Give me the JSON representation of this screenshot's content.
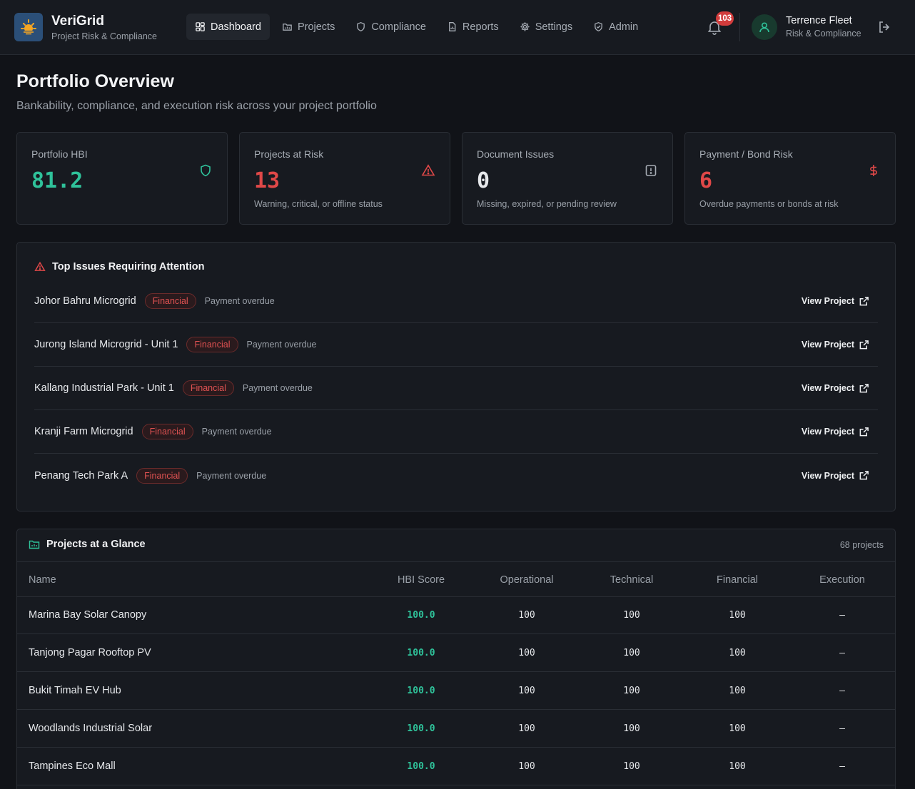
{
  "brand": {
    "name": "VeriGrid",
    "subtitle": "Project Risk & Compliance"
  },
  "nav": [
    {
      "label": "Dashboard",
      "icon": "dashboard-icon",
      "active": true
    },
    {
      "label": "Projects",
      "icon": "folder-icon"
    },
    {
      "label": "Compliance",
      "icon": "shield-icon"
    },
    {
      "label": "Reports",
      "icon": "report-icon"
    },
    {
      "label": "Settings",
      "icon": "gear-icon"
    },
    {
      "label": "Admin",
      "icon": "shield-check-icon"
    }
  ],
  "notifications": {
    "count": "103"
  },
  "user": {
    "name": "Terrence Fleet",
    "role": "Risk & Compliance"
  },
  "page": {
    "title": "Portfolio Overview",
    "subtitle": "Bankability, compliance, and execution risk across your project portfolio"
  },
  "cards": [
    {
      "label": "Portfolio HBI",
      "value": "81.2",
      "note": "",
      "icon": "shield-icon",
      "color": "#2fc29a"
    },
    {
      "label": "Projects at Risk",
      "value": "13",
      "note": "Warning, critical, or offline status",
      "icon": "warning-icon",
      "color": "#e04848"
    },
    {
      "label": "Document Issues",
      "value": "0",
      "note": "Missing, expired, or pending review",
      "icon": "alert-doc-icon",
      "color": "#e6e8eb"
    },
    {
      "label": "Payment / Bond Risk",
      "value": "6",
      "note": "Overdue payments or bonds at risk",
      "icon": "dollar-icon",
      "color": "#e04848"
    }
  ],
  "issues": {
    "title": "Top Issues Requiring Attention",
    "view_label": "View Project",
    "items": [
      {
        "project": "Johor Bahru Microgrid",
        "category": "Financial",
        "description": "Payment overdue"
      },
      {
        "project": "Jurong Island Microgrid - Unit 1",
        "category": "Financial",
        "description": "Payment overdue"
      },
      {
        "project": "Kallang Industrial Park - Unit 1",
        "category": "Financial",
        "description": "Payment overdue"
      },
      {
        "project": "Kranji Farm Microgrid",
        "category": "Financial",
        "description": "Payment overdue"
      },
      {
        "project": "Penang Tech Park A",
        "category": "Financial",
        "description": "Payment overdue"
      }
    ]
  },
  "glance": {
    "title": "Projects at a Glance",
    "count": "68 projects",
    "columns": [
      "Name",
      "HBI Score",
      "Operational",
      "Technical",
      "Financial",
      "Execution"
    ],
    "rows": [
      {
        "name": "Marina Bay Solar Canopy",
        "hbi": "100.0",
        "operational": "100",
        "technical": "100",
        "financial": "100",
        "execution": "—"
      },
      {
        "name": "Tanjong Pagar Rooftop PV",
        "hbi": "100.0",
        "operational": "100",
        "technical": "100",
        "financial": "100",
        "execution": "—"
      },
      {
        "name": "Bukit Timah EV Hub",
        "hbi": "100.0",
        "operational": "100",
        "technical": "100",
        "financial": "100",
        "execution": "—"
      },
      {
        "name": "Woodlands Industrial Solar",
        "hbi": "100.0",
        "operational": "100",
        "technical": "100",
        "financial": "100",
        "execution": "—"
      },
      {
        "name": "Tampines Eco Mall",
        "hbi": "100.0",
        "operational": "100",
        "technical": "100",
        "financial": "100",
        "execution": "—"
      }
    ]
  }
}
